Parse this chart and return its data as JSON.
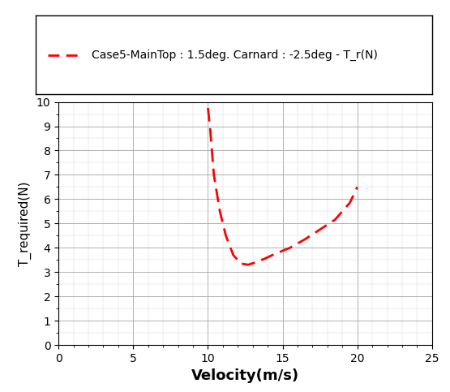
{
  "x_data": [
    10.0,
    10.15,
    10.4,
    10.8,
    11.2,
    11.7,
    12.2,
    12.7,
    13.2,
    13.8,
    14.5,
    15.5,
    16.5,
    17.5,
    18.5,
    19.5,
    20.0
  ],
  "y_data": [
    9.75,
    8.9,
    7.0,
    5.5,
    4.5,
    3.7,
    3.35,
    3.3,
    3.4,
    3.55,
    3.75,
    4.0,
    4.35,
    4.75,
    5.15,
    5.85,
    6.5
  ],
  "line_color": "#FF0000",
  "line_width": 2.0,
  "legend_label": "Case5-MainTop : 1.5deg. Carnard : -2.5deg - T_r(N)",
  "xlabel": "Velocity(m/s)",
  "ylabel": "T_required(N)",
  "xlim": [
    0,
    25
  ],
  "ylim": [
    0,
    10
  ],
  "xticks": [
    0,
    5,
    10,
    15,
    20,
    25
  ],
  "yticks": [
    0,
    1,
    2,
    3,
    4,
    5,
    6,
    7,
    8,
    9,
    10
  ],
  "grid_major_color": "#B0B0B0",
  "grid_minor_color": "#D8D8D8",
  "bg_color": "#FFFFFF",
  "legend_fontsize": 10,
  "xlabel_fontsize": 13,
  "ylabel_fontsize": 11,
  "tick_fontsize": 10
}
